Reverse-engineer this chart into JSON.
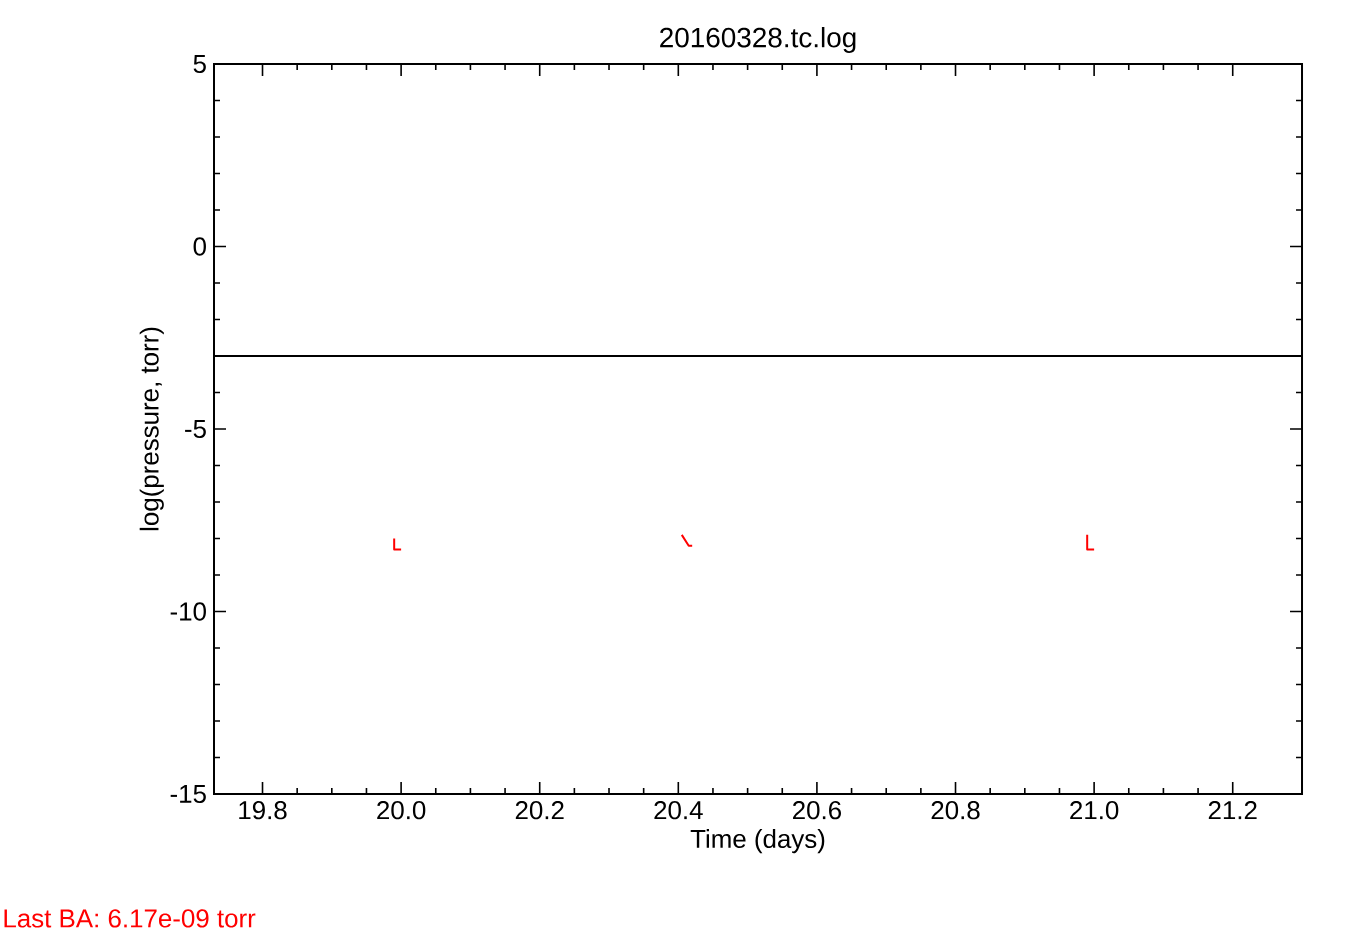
{
  "chart_data": {
    "type": "line",
    "title": "20160328.tc.log",
    "xlabel": "Time (days)",
    "ylabel": "log(pressure, torr)",
    "x": [
      19.99,
      19.99,
      20.0,
      null,
      20.405,
      20.415,
      20.42,
      null,
      20.99,
      20.99,
      21.0
    ],
    "series": [
      {
        "color": "#ff0000",
        "values": [
          -8.0,
          -8.3,
          -8.3,
          null,
          -7.9,
          -8.2,
          -8.2,
          null,
          -7.9,
          -8.3,
          -8.3
        ]
      }
    ],
    "xlim": [
      19.73,
      21.3
    ],
    "xticks": [
      {
        "value": 19.8,
        "label": "19.8"
      },
      {
        "value": 20.0,
        "label": "20.0"
      },
      {
        "value": 20.2,
        "label": "20.2"
      },
      {
        "value": 20.4,
        "label": "20.4"
      },
      {
        "value": 20.6,
        "label": "20.6"
      },
      {
        "value": 20.8,
        "label": "20.8"
      },
      {
        "value": 21.0,
        "label": "21.0"
      },
      {
        "value": 21.2,
        "label": "21.2"
      }
    ],
    "ylim": [
      -15,
      5
    ],
    "yticks": [
      -15,
      -10,
      -5,
      0,
      5
    ],
    "ref_lines": [
      {
        "axis": "y",
        "value": -3,
        "color": "#000000"
      }
    ],
    "annotations": [
      "Last BA: 6.17e-09 torr"
    ],
    "grid": false,
    "marker": "none",
    "line_style": "solid"
  }
}
